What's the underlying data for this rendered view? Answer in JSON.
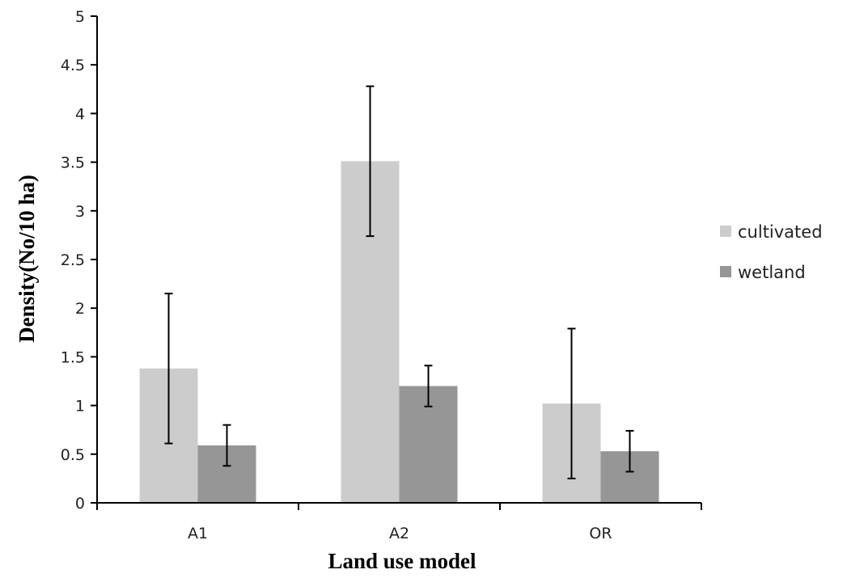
{
  "chart_data": {
    "type": "bar",
    "title": "",
    "xlabel": "Land use model",
    "ylabel": "Density(No/10 ha)",
    "categories": [
      "A1",
      "A2",
      "OR"
    ],
    "ylim": [
      0,
      5
    ],
    "yticks": [
      "0",
      "0.5",
      "1",
      "1.5",
      "2",
      "2.5",
      "3",
      "3.5",
      "4",
      "4.5",
      "5"
    ],
    "grid": false,
    "legend_position": "right",
    "series": [
      {
        "name": "cultivated",
        "color": "#cccccc",
        "values": [
          1.38,
          3.51,
          1.02
        ],
        "err_low": [
          0.61,
          2.74,
          0.25
        ],
        "err_high": [
          2.15,
          4.28,
          1.79
        ]
      },
      {
        "name": "wetland",
        "color": "#969696",
        "values": [
          0.59,
          1.2,
          0.53
        ],
        "err_low": [
          0.38,
          0.99,
          0.32
        ],
        "err_high": [
          0.8,
          1.41,
          0.74
        ]
      }
    ]
  }
}
